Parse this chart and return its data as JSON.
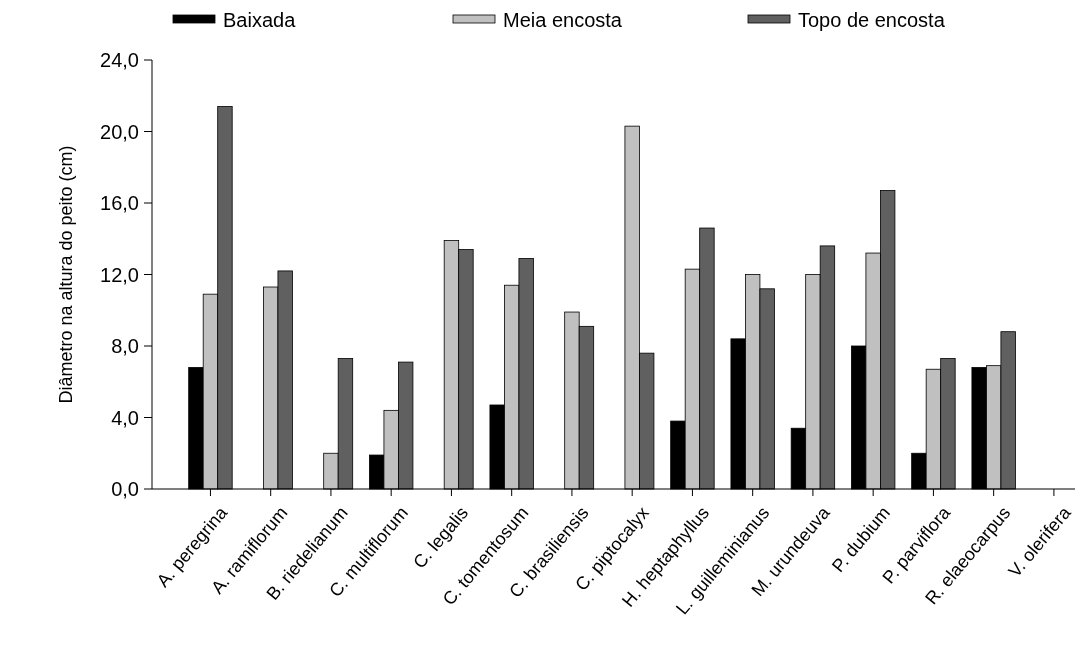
{
  "chart_data": {
    "type": "bar",
    "ylabel": "Diâmetro na altura do peito (cm)",
    "categories": [
      "A. peregrina",
      "A. ramiflorum",
      "B. riedelianum",
      "C. multiflorum",
      "C. legalis",
      "C. tomentosum",
      "C. brasiliensis",
      "C. piptocalyx",
      "H. heptaphyllus",
      "L. guilleminianus",
      "M. urundeuva",
      "P. dubium",
      "P. parviflora",
      "R. elaeocarpus",
      "V. olerifera"
    ],
    "series": [
      {
        "name": "Baixada",
        "color": "#000000",
        "values": [
          6.8,
          null,
          null,
          1.9,
          null,
          4.7,
          null,
          null,
          3.8,
          8.4,
          3.4,
          8.0,
          2.0,
          6.8,
          null
        ]
      },
      {
        "name": "Meia encosta",
        "color": "#c0c0c0",
        "values": [
          10.9,
          11.3,
          2.0,
          4.4,
          13.9,
          11.4,
          9.9,
          20.3,
          12.3,
          12.0,
          12.0,
          13.2,
          6.7,
          6.9,
          null
        ]
      },
      {
        "name": "Topo de encosta",
        "color": "#606060",
        "values": [
          21.4,
          12.2,
          7.3,
          7.1,
          13.4,
          12.9,
          9.1,
          7.6,
          14.6,
          11.2,
          13.6,
          16.7,
          7.3,
          8.8,
          null
        ]
      }
    ],
    "ylim": [
      0,
      24
    ],
    "yticks": [
      {
        "value": 0,
        "label": "0,0"
      },
      {
        "value": 4,
        "label": "4,0"
      },
      {
        "value": 8,
        "label": "8,0"
      },
      {
        "value": 12,
        "label": "12,0"
      },
      {
        "value": 16,
        "label": "16,0"
      },
      {
        "value": 20,
        "label": "20,0"
      },
      {
        "value": 24,
        "label": "24,0"
      }
    ],
    "grid": false,
    "legend": "top"
  }
}
